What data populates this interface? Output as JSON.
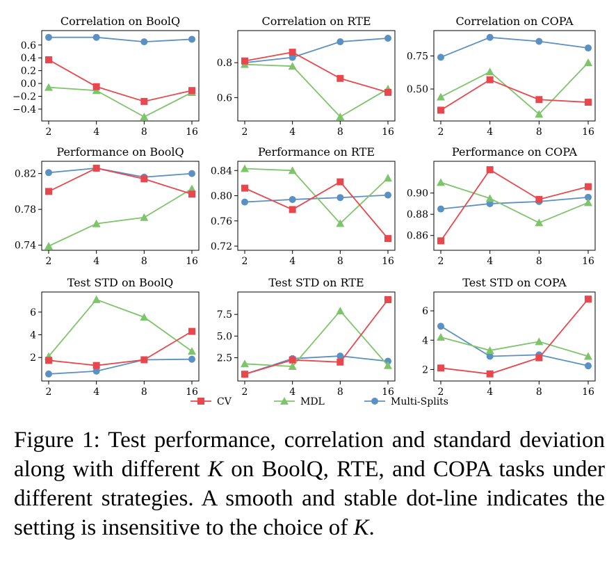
{
  "chart_data": [
    {
      "type": "line",
      "title": "Correlation on BoolQ",
      "x": [
        "2",
        "4",
        "8",
        "16"
      ],
      "yticks": [
        "0.6",
        "0.4",
        "0.2",
        "0.0",
        "−0.2",
        "−0.4"
      ],
      "ytick_values": [
        0.6,
        0.4,
        0.2,
        0.0,
        -0.2,
        -0.4
      ],
      "ylim": [
        -0.52,
        0.76
      ],
      "series": [
        {
          "name": "CV",
          "values": [
            0.37,
            -0.05,
            -0.28,
            -0.11
          ]
        },
        {
          "name": "MDL",
          "values": [
            -0.06,
            -0.11,
            -0.52,
            -0.14
          ]
        },
        {
          "name": "Multi-Splits",
          "values": [
            0.72,
            0.72,
            0.65,
            0.69
          ]
        }
      ]
    },
    {
      "type": "line",
      "title": "Correlation on RTE",
      "x": [
        "2",
        "4",
        "8",
        "16"
      ],
      "yticks": [
        "0.8",
        "0.6"
      ],
      "ytick_values": [
        0.8,
        0.6
      ],
      "ylim": [
        0.49,
        0.96
      ],
      "series": [
        {
          "name": "CV",
          "values": [
            0.81,
            0.86,
            0.71,
            0.63
          ]
        },
        {
          "name": "MDL",
          "values": [
            0.79,
            0.78,
            0.49,
            0.65
          ]
        },
        {
          "name": "Multi-Splits",
          "values": [
            0.8,
            0.83,
            0.92,
            0.94
          ]
        }
      ]
    },
    {
      "type": "line",
      "title": "Correlation on COPA",
      "x": [
        "2",
        "4",
        "8",
        "16"
      ],
      "yticks": [
        "0.75",
        "0.50"
      ],
      "ytick_values": [
        0.75,
        0.5
      ],
      "ylim": [
        0.29,
        0.91
      ],
      "series": [
        {
          "name": "CV",
          "values": [
            0.34,
            0.57,
            0.42,
            0.4
          ]
        },
        {
          "name": "MDL",
          "values": [
            0.44,
            0.63,
            0.31,
            0.7
          ]
        },
        {
          "name": "Multi-Splits",
          "values": [
            0.74,
            0.89,
            0.86,
            0.81
          ]
        }
      ]
    },
    {
      "type": "line",
      "title": "Performance on BoolQ",
      "x": [
        "2",
        "4",
        "8",
        "16"
      ],
      "yticks": [
        "0.82",
        "0.78",
        "0.74"
      ],
      "ytick_values": [
        0.82,
        0.78,
        0.74
      ],
      "ylim": [
        0.739,
        0.829
      ],
      "series": [
        {
          "name": "CV",
          "values": [
            0.8,
            0.826,
            0.814,
            0.797
          ]
        },
        {
          "name": "MDL",
          "values": [
            0.739,
            0.764,
            0.771,
            0.803
          ]
        },
        {
          "name": "Multi-Splits",
          "values": [
            0.821,
            0.826,
            0.816,
            0.82
          ]
        }
      ]
    },
    {
      "type": "line",
      "title": "Performance on RTE",
      "x": [
        "2",
        "4",
        "8",
        "16"
      ],
      "yticks": [
        "0.84",
        "0.80",
        "0.76",
        "0.72"
      ],
      "ytick_values": [
        0.84,
        0.8,
        0.76,
        0.72
      ],
      "ylim": [
        0.72,
        0.848
      ],
      "series": [
        {
          "name": "CV",
          "values": [
            0.812,
            0.778,
            0.822,
            0.732
          ]
        },
        {
          "name": "MDL",
          "values": [
            0.843,
            0.84,
            0.756,
            0.828
          ]
        },
        {
          "name": "Multi-Splits",
          "values": [
            0.79,
            0.794,
            0.797,
            0.801
          ]
        }
      ]
    },
    {
      "type": "line",
      "title": "Performance on COPA",
      "x": [
        "2",
        "4",
        "8",
        "16"
      ],
      "yticks": [
        "0.90",
        "0.88",
        "0.86"
      ],
      "ytick_values": [
        0.9,
        0.88,
        0.86
      ],
      "ylim": [
        0.85,
        0.926
      ],
      "series": [
        {
          "name": "CV",
          "values": [
            0.855,
            0.922,
            0.894,
            0.906
          ]
        },
        {
          "name": "MDL",
          "values": [
            0.91,
            0.895,
            0.872,
            0.891
          ]
        },
        {
          "name": "Multi-Splits",
          "values": [
            0.885,
            0.89,
            0.892,
            0.896
          ]
        }
      ]
    },
    {
      "type": "line",
      "title": "Test STD on BoolQ",
      "x": [
        "2",
        "4",
        "8",
        "16"
      ],
      "yticks": [
        "6",
        "4",
        "2"
      ],
      "ytick_values": [
        6,
        4,
        2
      ],
      "ylim": [
        0.3,
        7.4
      ],
      "series": [
        {
          "name": "CV",
          "values": [
            1.75,
            1.3,
            1.8,
            4.3
          ]
        },
        {
          "name": "MDL",
          "values": [
            2.1,
            7.1,
            5.55,
            2.55
          ]
        },
        {
          "name": "Multi-Splits",
          "values": [
            0.55,
            0.8,
            1.8,
            1.85
          ]
        }
      ]
    },
    {
      "type": "line",
      "title": "Test STD on RTE",
      "x": [
        "2",
        "4",
        "8",
        "16"
      ],
      "yticks": [
        "7.5",
        "5.0",
        "2.5"
      ],
      "ytick_values": [
        7.5,
        5.0,
        2.5
      ],
      "ylim": [
        0.3,
        9.6
      ],
      "series": [
        {
          "name": "CV",
          "values": [
            0.6,
            2.25,
            2.0,
            9.2
          ]
        },
        {
          "name": "MDL",
          "values": [
            1.8,
            1.5,
            7.9,
            1.6
          ]
        },
        {
          "name": "Multi-Splits",
          "values": [
            0.6,
            2.4,
            2.7,
            2.1
          ]
        }
      ]
    },
    {
      "type": "line",
      "title": "Test STD on COPA",
      "x": [
        "2",
        "4",
        "8",
        "16"
      ],
      "yticks": [
        "6",
        "4",
        "2"
      ],
      "ytick_values": [
        6,
        4,
        2
      ],
      "ylim": [
        1.5,
        7.0
      ],
      "series": [
        {
          "name": "CV",
          "values": [
            2.1,
            1.7,
            2.8,
            6.8
          ]
        },
        {
          "name": "MDL",
          "values": [
            4.2,
            3.3,
            3.9,
            2.9
          ]
        },
        {
          "name": "Multi-Splits",
          "values": [
            4.95,
            2.9,
            3.0,
            2.25
          ]
        }
      ]
    }
  ],
  "legend": [
    {
      "name": "CV",
      "color": "#e8474d",
      "marker": "square"
    },
    {
      "name": "MDL",
      "color": "#7ec46b",
      "marker": "triangle"
    },
    {
      "name": "Multi-Splits",
      "color": "#5b90c2",
      "marker": "circle"
    }
  ],
  "caption": {
    "part1": "Figure 1:  Test performance, correlation and standard deviation along with different ",
    "k1": "K",
    "part2": " on BoolQ, RTE, and COPA tasks under different strategies.  A smooth and stable dot-line indicates the setting is insensitive to the choice of ",
    "k2": "K",
    "part3": "."
  }
}
